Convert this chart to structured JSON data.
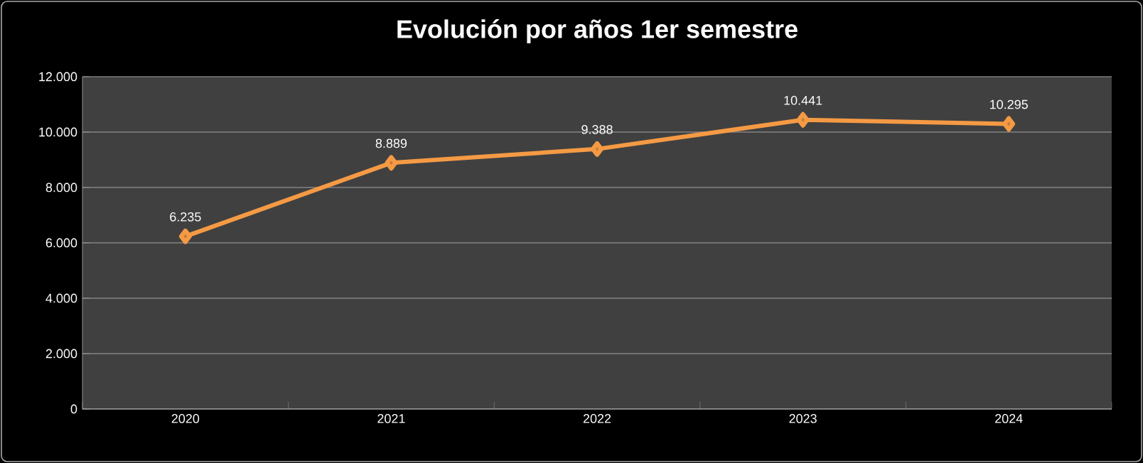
{
  "chart_data": {
    "type": "line",
    "title": "Evolución por años 1er semestre",
    "categories": [
      "2020",
      "2021",
      "2022",
      "2023",
      "2024"
    ],
    "series": [
      {
        "color": "#f59a44",
        "values": [
          6235,
          8889,
          9388,
          10441,
          10295
        ],
        "value_labels": [
          "6.235",
          "8.889",
          "9.388",
          "10.441",
          "10.295"
        ]
      }
    ],
    "ylim": [
      0,
      12000
    ],
    "yticks": [
      {
        "value": 0,
        "label": "0"
      },
      {
        "value": 2000,
        "label": "2.000"
      },
      {
        "value": 4000,
        "label": "4.000"
      },
      {
        "value": 6000,
        "label": "6.000"
      },
      {
        "value": 8000,
        "label": "8.000"
      },
      {
        "value": 10000,
        "label": "10.000"
      },
      {
        "value": 12000,
        "label": "12.000"
      }
    ],
    "grid": "y",
    "marker": "diamond",
    "line_style": "solid"
  }
}
